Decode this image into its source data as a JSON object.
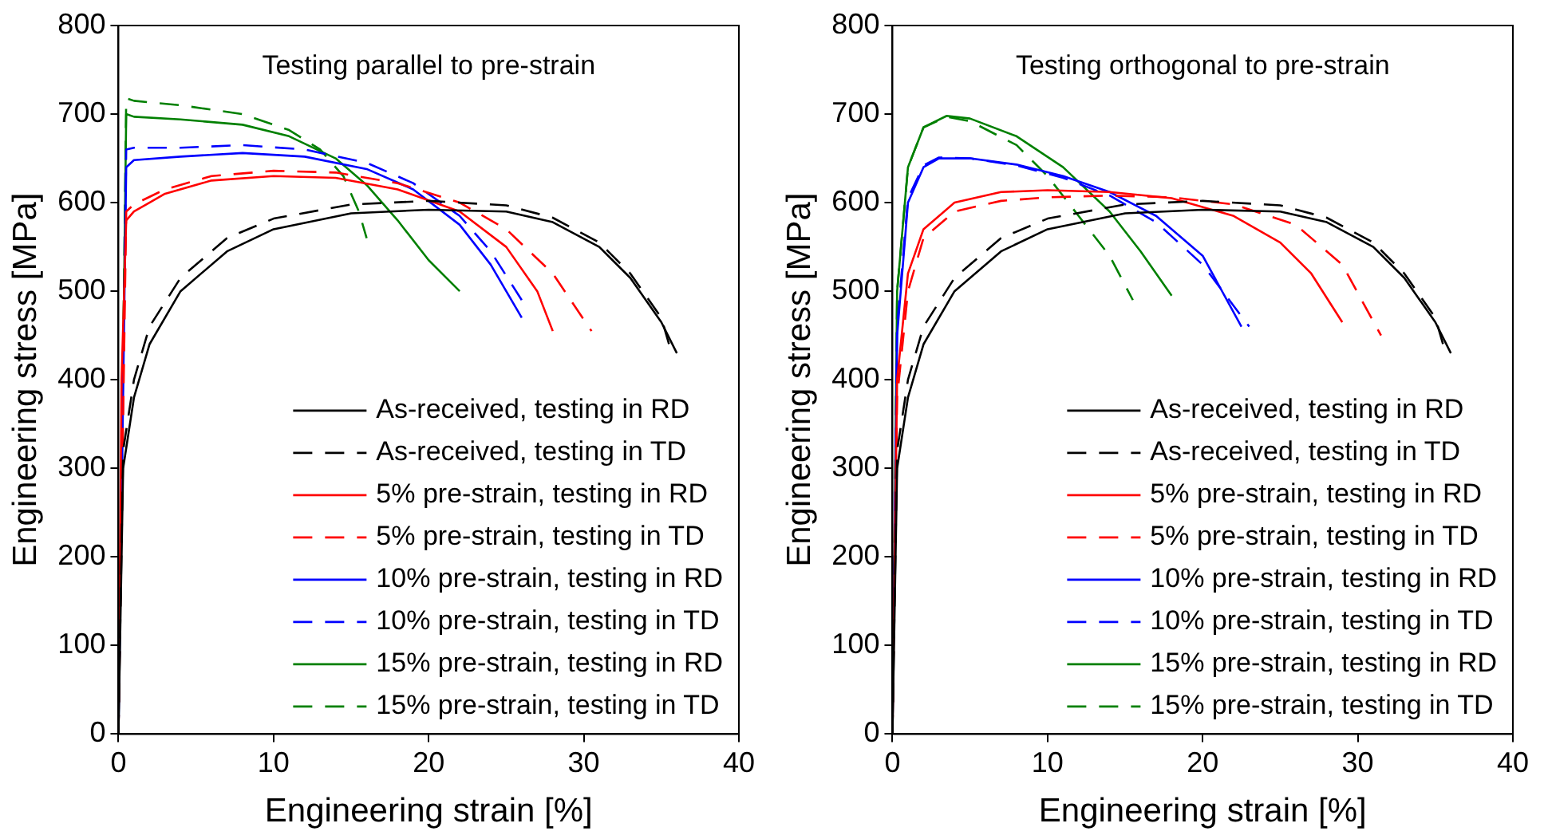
{
  "chart_data": [
    {
      "type": "line",
      "title": "Testing parallel to pre-strain",
      "xlabel": "Engineering strain [%]",
      "ylabel": "Engineering stress [MPa]",
      "xlim": [
        0,
        40
      ],
      "xticks": [
        0,
        10,
        20,
        30,
        40
      ],
      "ylim": [
        0,
        800
      ],
      "yticks": [
        0,
        100,
        200,
        300,
        400,
        500,
        600,
        700,
        800
      ],
      "grid": false,
      "legend": "bottom right",
      "marker": "none",
      "series": [
        {
          "name": "As-received, testing in RD",
          "color": "#000000",
          "line_style": "solid",
          "x": [
            0,
            0.3,
            1,
            2,
            4,
            7,
            10,
            15,
            20,
            25,
            28,
            31,
            33,
            35,
            36
          ],
          "values": [
            0,
            300,
            380,
            440,
            500,
            545,
            570,
            588,
            592,
            590,
            578,
            550,
            515,
            465,
            430
          ]
        },
        {
          "name": "As-received, testing in TD",
          "color": "#000000",
          "line_style": "dashed",
          "x": [
            0,
            0.3,
            1,
            2,
            4,
            7,
            10,
            15,
            20,
            25,
            28,
            31,
            33,
            35,
            35.5
          ],
          "values": [
            0,
            320,
            400,
            460,
            515,
            560,
            582,
            598,
            602,
            597,
            583,
            555,
            520,
            470,
            440
          ]
        },
        {
          "name": "5% pre-strain, testing in RD",
          "color": "#ff0000",
          "line_style": "solid",
          "x": [
            0,
            0.2,
            0.5,
            1,
            3,
            6,
            10,
            14,
            18,
            22,
            25,
            27,
            28
          ],
          "values": [
            0,
            400,
            580,
            590,
            610,
            625,
            630,
            628,
            615,
            590,
            550,
            500,
            455
          ]
        },
        {
          "name": "5% pre-strain, testing in TD",
          "color": "#ff0000",
          "line_style": "dashed",
          "x": [
            0,
            0.5,
            1,
            3,
            6,
            10,
            14,
            18,
            22,
            25,
            28,
            30.5
          ],
          "values": [
            0,
            590,
            598,
            615,
            630,
            636,
            634,
            622,
            600,
            570,
            520,
            455
          ]
        },
        {
          "name": "10% pre-strain, testing in RD",
          "color": "#0000ff",
          "line_style": "solid",
          "x": [
            0,
            0.5,
            1,
            4,
            8,
            12,
            16,
            19,
            22,
            24,
            26
          ],
          "values": [
            0,
            640,
            648,
            652,
            656,
            652,
            638,
            615,
            575,
            530,
            470
          ]
        },
        {
          "name": "10% pre-strain, testing in TD",
          "color": "#0000ff",
          "line_style": "dashed",
          "x": [
            0,
            0.5,
            1,
            4,
            8,
            12,
            16,
            19,
            22,
            24,
            26
          ],
          "values": [
            0,
            660,
            662,
            662,
            665,
            660,
            645,
            622,
            585,
            545,
            490
          ]
        },
        {
          "name": "15% pre-strain, testing in RD",
          "color": "#008000",
          "line_style": "solid",
          "x": [
            0,
            0.5,
            1,
            4,
            8,
            11,
            14,
            16,
            18,
            20,
            22
          ],
          "values": [
            0,
            700,
            697,
            694,
            688,
            675,
            650,
            620,
            580,
            535,
            500
          ]
        },
        {
          "name": "15% pre-strain, testing in TD",
          "color": "#008000",
          "line_style": "dashed",
          "x": [
            0,
            0.5,
            1,
            4,
            8,
            11,
            13,
            14.5,
            15.5,
            16
          ],
          "values": [
            0,
            718,
            715,
            710,
            700,
            682,
            660,
            630,
            590,
            560
          ]
        }
      ]
    },
    {
      "type": "line",
      "title": "Testing orthogonal to pre-strain",
      "xlabel": "Engineering strain [%]",
      "ylabel": "Engineering stress [MPa]",
      "xlim": [
        0,
        40
      ],
      "xticks": [
        0,
        10,
        20,
        30,
        40
      ],
      "ylim": [
        0,
        800
      ],
      "yticks": [
        0,
        100,
        200,
        300,
        400,
        500,
        600,
        700,
        800
      ],
      "grid": false,
      "legend": "bottom right",
      "marker": "none",
      "series": [
        {
          "name": "As-received, testing in RD",
          "color": "#000000",
          "line_style": "solid",
          "x": [
            0,
            0.3,
            1,
            2,
            4,
            7,
            10,
            15,
            20,
            25,
            28,
            31,
            33,
            35,
            36
          ],
          "values": [
            0,
            300,
            380,
            440,
            500,
            545,
            570,
            588,
            592,
            590,
            578,
            550,
            515,
            465,
            430
          ]
        },
        {
          "name": "As-received, testing in TD",
          "color": "#000000",
          "line_style": "dashed",
          "x": [
            0,
            0.3,
            1,
            2,
            4,
            7,
            10,
            15,
            20,
            25,
            28,
            31,
            33,
            35,
            35.5
          ],
          "values": [
            0,
            320,
            400,
            460,
            515,
            560,
            582,
            598,
            602,
            597,
            583,
            555,
            520,
            470,
            440
          ]
        },
        {
          "name": "5% pre-strain, testing in RD",
          "color": "#ff0000",
          "line_style": "solid",
          "x": [
            0,
            0.3,
            1,
            2,
            4,
            7,
            10,
            14,
            18,
            22,
            25,
            27,
            29
          ],
          "values": [
            0,
            400,
            520,
            570,
            600,
            612,
            614,
            612,
            605,
            585,
            555,
            520,
            465
          ]
        },
        {
          "name": "5% pre-strain, testing in TD",
          "color": "#ff0000",
          "line_style": "dashed",
          "x": [
            0,
            0.3,
            1,
            2,
            4,
            7,
            10,
            14,
            18,
            22,
            26,
            29,
            31.5
          ],
          "values": [
            0,
            380,
            500,
            560,
            590,
            602,
            606,
            608,
            606,
            598,
            575,
            530,
            450
          ]
        },
        {
          "name": "10% pre-strain, testing in RD",
          "color": "#0000ff",
          "line_style": "solid",
          "x": [
            0,
            0.3,
            1,
            2,
            3,
            5,
            8,
            11,
            14,
            17,
            20,
            22.5
          ],
          "values": [
            0,
            450,
            600,
            640,
            650,
            650,
            643,
            630,
            612,
            585,
            540,
            460
          ]
        },
        {
          "name": "10% pre-strain, testing in TD",
          "color": "#0000ff",
          "line_style": "dashed",
          "x": [
            0,
            0.3,
            1,
            2,
            3,
            5,
            8,
            11,
            14,
            17,
            20,
            23
          ],
          "values": [
            0,
            460,
            605,
            642,
            651,
            650,
            642,
            628,
            608,
            578,
            530,
            460
          ]
        },
        {
          "name": "15% pre-strain, testing in RD",
          "color": "#008000",
          "line_style": "solid",
          "x": [
            0,
            0.3,
            1,
            2,
            3.5,
            5,
            8,
            11,
            14,
            16,
            18
          ],
          "values": [
            0,
            500,
            640,
            685,
            698,
            695,
            675,
            640,
            590,
            545,
            495
          ]
        },
        {
          "name": "15% pre-strain, testing in TD",
          "color": "#008000",
          "line_style": "dashed",
          "x": [
            0,
            0.3,
            1,
            2,
            3.5,
            5,
            8,
            10,
            12,
            14,
            15.5
          ],
          "values": [
            0,
            500,
            640,
            685,
            697,
            692,
            665,
            630,
            585,
            540,
            490
          ]
        }
      ]
    }
  ]
}
